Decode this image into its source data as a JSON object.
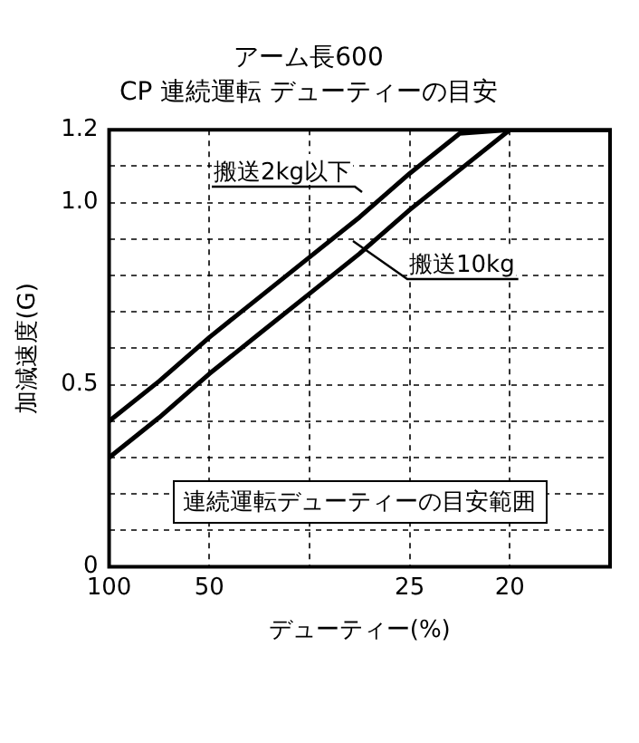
{
  "chart_data": {
    "type": "line",
    "title": "アーム長600",
    "subtitle": "CP 連続運転 デューティーの目安",
    "xlabel": "デューティー(%)",
    "ylabel": "加減速度(G)",
    "categories": [
      "100",
      null,
      "50",
      null,
      null,
      null,
      "25",
      null,
      "20",
      null,
      null
    ],
    "series": [
      {
        "name": "搬送2kg以下",
        "color": "#000000",
        "values": [
          0.4,
          0.51,
          0.63,
          0.74,
          0.85,
          0.96,
          1.08,
          1.19,
          1.2,
          1.2,
          1.2
        ]
      },
      {
        "name": "搬送10kg",
        "color": "#000000",
        "values": [
          0.3,
          0.41,
          0.53,
          0.64,
          0.75,
          0.86,
          0.98,
          1.09,
          1.2,
          1.2,
          1.2
        ]
      }
    ],
    "ylim": [
      0,
      1.2
    ],
    "yticks": [
      0,
      {
        "value": 0.1,
        "label": null
      },
      {
        "value": 0.2,
        "label": null
      },
      {
        "value": 0.3,
        "label": null
      },
      {
        "value": 0.4,
        "label": null
      },
      0.5,
      {
        "value": 0.6,
        "label": null
      },
      {
        "value": 0.7,
        "label": null
      },
      {
        "value": 0.8,
        "label": null
      },
      {
        "value": 0.9,
        "label": null
      },
      {
        "value": 1,
        "label": "1.0"
      },
      {
        "value": 1.1,
        "label": null
      },
      1.2
    ],
    "annotations": [
      "連続運転デューティーの目安範囲"
    ],
    "grid": true,
    "legend": false,
    "marker": "none",
    "line_style": "solid"
  }
}
